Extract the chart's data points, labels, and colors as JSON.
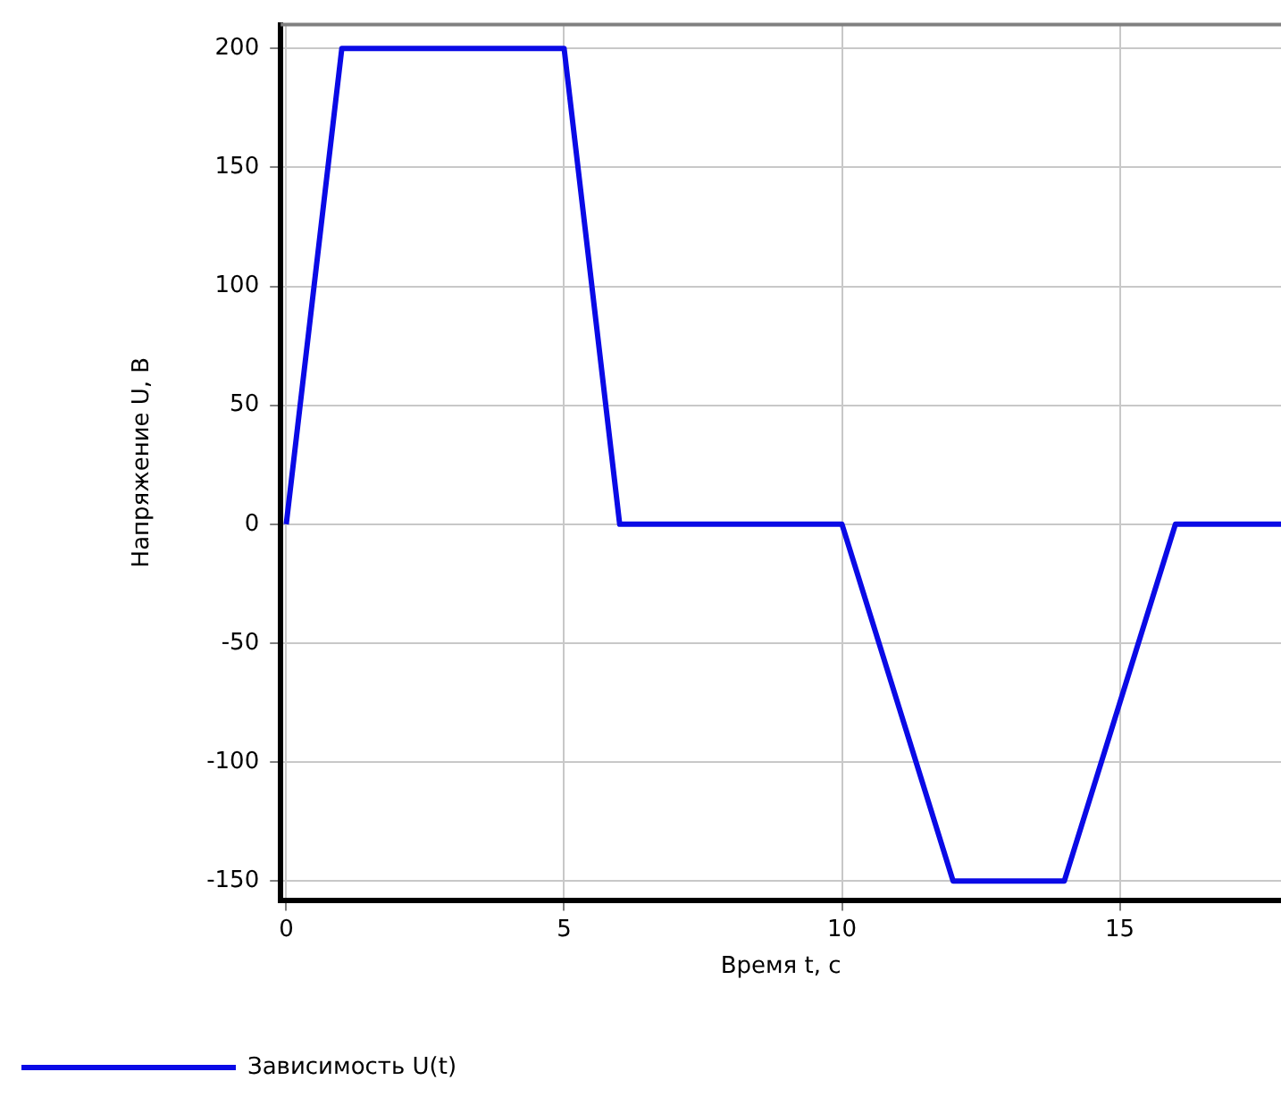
{
  "chart_data": {
    "type": "line",
    "xlabel": "Время t, с",
    "ylabel": "Напряжение U, В",
    "x": [
      0,
      1,
      5,
      6,
      10,
      12,
      14,
      16,
      17.9
    ],
    "series": [
      {
        "name": "Зависимость U(t)",
        "color": "#0a0ae6",
        "values": [
          0,
          200,
          200,
          0,
          0,
          -150,
          -150,
          0,
          0
        ]
      }
    ],
    "xlim": [
      -0.1,
      17.9
    ],
    "xticks": [
      0,
      5,
      10,
      15
    ],
    "ylim": [
      -158,
      210
    ],
    "yticks": [
      -150,
      -100,
      -50,
      0,
      50,
      100,
      150,
      200
    ],
    "grid": true,
    "legend": "bottom",
    "marker": "none",
    "line_style": "solid"
  }
}
